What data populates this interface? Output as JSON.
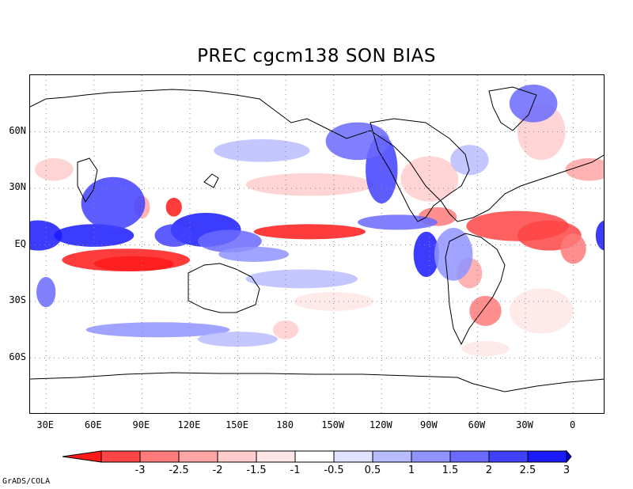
{
  "title": "PREC cgcm138 SON  BIAS",
  "credit": "GrADS/COLA",
  "lat_labels": [
    "60N",
    "30N",
    "EQ",
    "30S",
    "60S"
  ],
  "lat_values": [
    60,
    30,
    0,
    -30,
    -60
  ],
  "lon_labels": [
    "30E",
    "60E",
    "90E",
    "120E",
    "150E",
    "180",
    "150W",
    "120W",
    "90W",
    "60W",
    "30W",
    "0"
  ],
  "lon_values": [
    30,
    60,
    90,
    120,
    150,
    180,
    210,
    240,
    270,
    300,
    330,
    360
  ],
  "map_extent": {
    "lon_min": 20,
    "lon_max": 380,
    "lat_min": -90,
    "lat_max": 90
  },
  "colorbar": {
    "labels": [
      "-3",
      "-2.5",
      "-2",
      "-1.5",
      "-1",
      "-0.5",
      "0.5",
      "1",
      "1.5",
      "2",
      "2.5",
      "3"
    ],
    "colors": [
      "#ff1a1a",
      "#ff4545",
      "#ff7a7a",
      "#ffa5a5",
      "#ffcccc",
      "#ffe6e6",
      "#ffffff",
      "#e0e2ff",
      "#b8bcff",
      "#8f93ff",
      "#6a6aff",
      "#4040ff",
      "#1a1aff",
      "#0000e6"
    ]
  },
  "bias_regions": [
    {
      "lon": 80,
      "lat": -8,
      "rlon": 40,
      "rlat": 6,
      "level": -3
    },
    {
      "lon": 85,
      "lat": -10,
      "rlon": 25,
      "rlat": 4,
      "level": -3
    },
    {
      "lon": 195,
      "lat": 7,
      "rlon": 35,
      "rlat": 4,
      "level": -3
    },
    {
      "lon": 325,
      "lat": 10,
      "rlon": 32,
      "rlat": 8,
      "level": -2.5
    },
    {
      "lon": 345,
      "lat": 5,
      "rlon": 20,
      "rlat": 8,
      "level": -2.5
    },
    {
      "lon": 360,
      "lat": -2,
      "rlon": 8,
      "rlat": 8,
      "level": -2
    },
    {
      "lon": 110,
      "lat": 20,
      "rlon": 5,
      "rlat": 5,
      "level": -3
    },
    {
      "lon": 90,
      "lat": 20,
      "rlon": 5,
      "rlat": 6,
      "level": -1.5
    },
    {
      "lon": 305,
      "lat": -35,
      "rlon": 10,
      "rlat": 8,
      "level": -2
    },
    {
      "lon": 295,
      "lat": -15,
      "rlon": 8,
      "rlat": 8,
      "level": -1.5
    },
    {
      "lon": 275,
      "lat": 15,
      "rlon": 12,
      "rlat": 5,
      "level": -2
    },
    {
      "lon": 195,
      "lat": 32,
      "rlon": 40,
      "rlat": 6,
      "level": -1
    },
    {
      "lon": 270,
      "lat": 35,
      "rlon": 18,
      "rlat": 12,
      "level": -1
    },
    {
      "lon": 370,
      "lat": 40,
      "rlon": 15,
      "rlat": 6,
      "level": -1.5
    },
    {
      "lon": 35,
      "lat": 40,
      "rlon": 12,
      "rlat": 6,
      "level": -1
    },
    {
      "lon": 180,
      "lat": -45,
      "rlon": 8,
      "rlat": 5,
      "level": -1
    },
    {
      "lon": 210,
      "lat": -30,
      "rlon": 25,
      "rlat": 5,
      "level": -0.5
    },
    {
      "lon": 305,
      "lat": -55,
      "rlon": 15,
      "rlat": 4,
      "level": -0.5
    },
    {
      "lon": 340,
      "lat": -35,
      "rlon": 20,
      "rlat": 12,
      "level": -0.5
    },
    {
      "lon": 340,
      "lat": 60,
      "rlon": 15,
      "rlat": 15,
      "level": -1
    },
    {
      "lon": 25,
      "lat": 5,
      "rlon": 15,
      "rlat": 8,
      "level": 3
    },
    {
      "lon": 60,
      "lat": 5,
      "rlon": 25,
      "rlat": 6,
      "level": 3
    },
    {
      "lon": 72,
      "lat": 22,
      "rlon": 20,
      "rlat": 14,
      "level": 2.5
    },
    {
      "lon": 130,
      "lat": 8,
      "rlon": 22,
      "rlat": 9,
      "level": 3
    },
    {
      "lon": 110,
      "lat": 5,
      "rlon": 12,
      "rlat": 6,
      "level": 2.5
    },
    {
      "lon": 145,
      "lat": 2,
      "rlon": 20,
      "rlat": 6,
      "level": 2
    },
    {
      "lon": 160,
      "lat": -5,
      "rlon": 22,
      "rlat": 4,
      "level": 1.5
    },
    {
      "lon": 190,
      "lat": -18,
      "rlon": 35,
      "rlat": 5,
      "level": 1
    },
    {
      "lon": 268,
      "lat": -5,
      "rlon": 8,
      "rlat": 12,
      "level": 3
    },
    {
      "lon": 285,
      "lat": -5,
      "rlon": 12,
      "rlat": 14,
      "level": 1.5
    },
    {
      "lon": 240,
      "lat": 40,
      "rlon": 10,
      "rlat": 18,
      "level": 2.5
    },
    {
      "lon": 225,
      "lat": 55,
      "rlon": 20,
      "rlat": 10,
      "level": 2
    },
    {
      "lon": 335,
      "lat": 75,
      "rlon": 15,
      "rlat": 10,
      "level": 2
    },
    {
      "lon": 100,
      "lat": -45,
      "rlon": 45,
      "rlat": 4,
      "level": 1.5
    },
    {
      "lon": 150,
      "lat": -50,
      "rlon": 25,
      "rlat": 4,
      "level": 1
    },
    {
      "lon": 250,
      "lat": 12,
      "rlon": 25,
      "rlat": 4,
      "level": 2
    },
    {
      "lon": 165,
      "lat": 50,
      "rlon": 30,
      "rlat": 6,
      "level": 1
    },
    {
      "lon": 295,
      "lat": 45,
      "rlon": 12,
      "rlat": 8,
      "level": 1
    },
    {
      "lon": 30,
      "lat": -25,
      "rlon": 6,
      "rlat": 8,
      "level": 2
    },
    {
      "lon": 380,
      "lat": 5,
      "rlon": 6,
      "rlat": 8,
      "level": 3
    }
  ]
}
